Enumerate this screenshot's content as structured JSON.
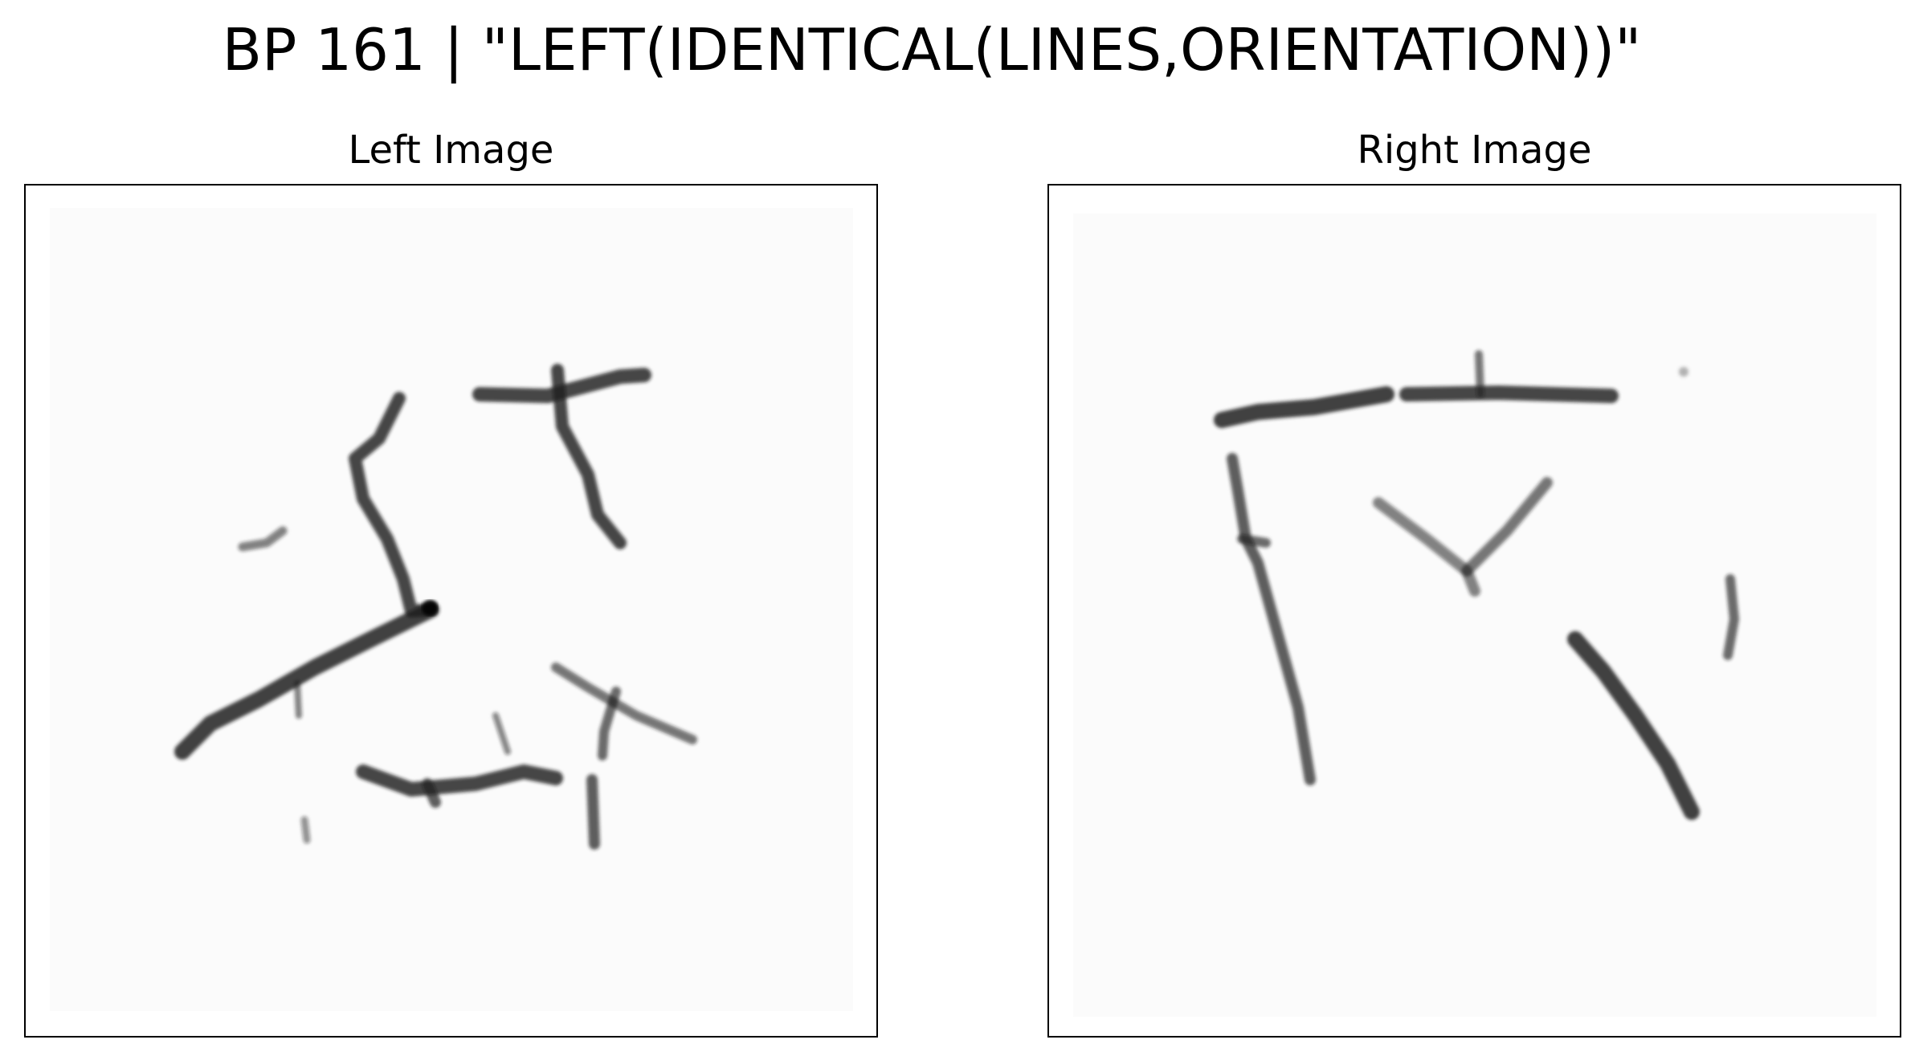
{
  "title": "BP 161 | \"LEFT(IDENTICAL(LINES,ORIENTATION))\"",
  "panels": {
    "left": {
      "title": "Left Image"
    },
    "right": {
      "title": "Right Image"
    }
  },
  "colors": {
    "background": "#ffffff",
    "frame": "#000000",
    "stroke": "#1a1a1a",
    "canvas_tint": "#fbfbfb"
  }
}
